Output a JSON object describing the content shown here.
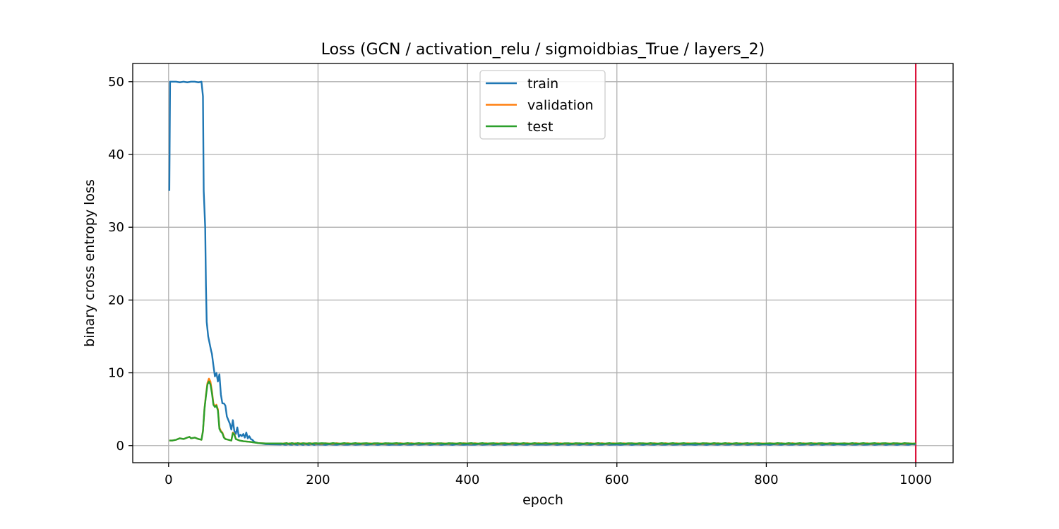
{
  "chart_data": {
    "type": "line",
    "title": "Loss (GCN / activation_relu / sigmoidbias_True / layers_2)",
    "xlabel": "epoch",
    "ylabel": "binary cross entropy loss",
    "xlim": [
      -48,
      1050
    ],
    "ylim": [
      -2.35,
      52.5
    ],
    "xticks": [
      0,
      200,
      400,
      600,
      800,
      1000
    ],
    "yticks": [
      0,
      10,
      20,
      30,
      40,
      50
    ],
    "grid": true,
    "legend_position": "upper center",
    "vline": {
      "x": 1000,
      "color": "#dc143c"
    },
    "series": [
      {
        "name": "train",
        "color": "#1f77b4",
        "points": [
          [
            1,
            35
          ],
          [
            2,
            50
          ],
          [
            4,
            50
          ],
          [
            10,
            50
          ],
          [
            15,
            49.9
          ],
          [
            20,
            50
          ],
          [
            25,
            49.9
          ],
          [
            30,
            50
          ],
          [
            35,
            50
          ],
          [
            40,
            49.9
          ],
          [
            44,
            50
          ],
          [
            46,
            48
          ],
          [
            47,
            35
          ],
          [
            49,
            30
          ],
          [
            50,
            22
          ],
          [
            51,
            17
          ],
          [
            53,
            15
          ],
          [
            55,
            14
          ],
          [
            57,
            13
          ],
          [
            58,
            12.6
          ],
          [
            60,
            11
          ],
          [
            62,
            9.5
          ],
          [
            64,
            10
          ],
          [
            66,
            8.8
          ],
          [
            68,
            9.8
          ],
          [
            70,
            7
          ],
          [
            72,
            5.8
          ],
          [
            74,
            5.8
          ],
          [
            76,
            5.5
          ],
          [
            78,
            4
          ],
          [
            80,
            3.5
          ],
          [
            82,
            3
          ],
          [
            84,
            2.2
          ],
          [
            86,
            3.5
          ],
          [
            88,
            2
          ],
          [
            90,
            1.6
          ],
          [
            92,
            2.5
          ],
          [
            94,
            1.2
          ],
          [
            96,
            1.5
          ],
          [
            98,
            1.3
          ],
          [
            100,
            1.6
          ],
          [
            102,
            1.1
          ],
          [
            104,
            1.8
          ],
          [
            106,
            1
          ],
          [
            108,
            1.3
          ],
          [
            110,
            0.9
          ],
          [
            112,
            0.8
          ],
          [
            115,
            0.5
          ],
          [
            120,
            0.35
          ],
          [
            130,
            0.2
          ],
          [
            150,
            0.15
          ],
          [
            200,
            0.15
          ],
          [
            300,
            0.15
          ],
          [
            400,
            0.15
          ],
          [
            500,
            0.15
          ],
          [
            600,
            0.15
          ],
          [
            700,
            0.15
          ],
          [
            800,
            0.15
          ],
          [
            900,
            0.15
          ],
          [
            1000,
            0.15
          ]
        ]
      },
      {
        "name": "validation",
        "color": "#ff7f0e",
        "points": [
          [
            1,
            0.7
          ],
          [
            5,
            0.7
          ],
          [
            10,
            0.8
          ],
          [
            15,
            1
          ],
          [
            20,
            0.9
          ],
          [
            25,
            1.1
          ],
          [
            28,
            1.2
          ],
          [
            30,
            1
          ],
          [
            35,
            1.1
          ],
          [
            40,
            0.9
          ],
          [
            44,
            0.8
          ],
          [
            46,
            2
          ],
          [
            48,
            5
          ],
          [
            50,
            7
          ],
          [
            52,
            8.6
          ],
          [
            54,
            9.2
          ],
          [
            56,
            8.8
          ],
          [
            58,
            7.5
          ],
          [
            60,
            5.8
          ],
          [
            62,
            5.4
          ],
          [
            64,
            5.6
          ],
          [
            66,
            5
          ],
          [
            68,
            2.5
          ],
          [
            70,
            2
          ],
          [
            72,
            1.8
          ],
          [
            74,
            1.2
          ],
          [
            76,
            0.9
          ],
          [
            80,
            0.8
          ],
          [
            84,
            0.7
          ],
          [
            86,
            1.8
          ],
          [
            88,
            1.6
          ],
          [
            90,
            0.9
          ],
          [
            95,
            0.7
          ],
          [
            100,
            0.6
          ],
          [
            110,
            0.5
          ],
          [
            120,
            0.35
          ],
          [
            130,
            0.3
          ],
          [
            150,
            0.28
          ],
          [
            200,
            0.28
          ],
          [
            300,
            0.28
          ],
          [
            400,
            0.28
          ],
          [
            500,
            0.28
          ],
          [
            600,
            0.28
          ],
          [
            700,
            0.28
          ],
          [
            800,
            0.28
          ],
          [
            900,
            0.28
          ],
          [
            1000,
            0.28
          ]
        ]
      },
      {
        "name": "test",
        "color": "#2ca02c",
        "points": [
          [
            1,
            0.7
          ],
          [
            5,
            0.7
          ],
          [
            10,
            0.8
          ],
          [
            15,
            1
          ],
          [
            20,
            0.9
          ],
          [
            25,
            1.1
          ],
          [
            28,
            1.2
          ],
          [
            30,
            1
          ],
          [
            35,
            1.1
          ],
          [
            40,
            0.9
          ],
          [
            44,
            0.8
          ],
          [
            46,
            2
          ],
          [
            48,
            5
          ],
          [
            50,
            6.8
          ],
          [
            52,
            8.4
          ],
          [
            54,
            8.8
          ],
          [
            56,
            8.4
          ],
          [
            58,
            7.2
          ],
          [
            60,
            5.6
          ],
          [
            62,
            5.3
          ],
          [
            64,
            5.5
          ],
          [
            66,
            4.8
          ],
          [
            68,
            2.3
          ],
          [
            70,
            1.9
          ],
          [
            72,
            1.7
          ],
          [
            74,
            1.1
          ],
          [
            76,
            0.9
          ],
          [
            80,
            0.8
          ],
          [
            84,
            0.7
          ],
          [
            86,
            1.7
          ],
          [
            88,
            1.5
          ],
          [
            90,
            0.9
          ],
          [
            95,
            0.7
          ],
          [
            100,
            0.6
          ],
          [
            110,
            0.5
          ],
          [
            120,
            0.35
          ],
          [
            130,
            0.3
          ],
          [
            150,
            0.3
          ],
          [
            200,
            0.3
          ],
          [
            300,
            0.3
          ],
          [
            400,
            0.3
          ],
          [
            500,
            0.3
          ],
          [
            600,
            0.3
          ],
          [
            700,
            0.3
          ],
          [
            800,
            0.3
          ],
          [
            900,
            0.3
          ],
          [
            1000,
            0.3
          ]
        ]
      }
    ]
  }
}
